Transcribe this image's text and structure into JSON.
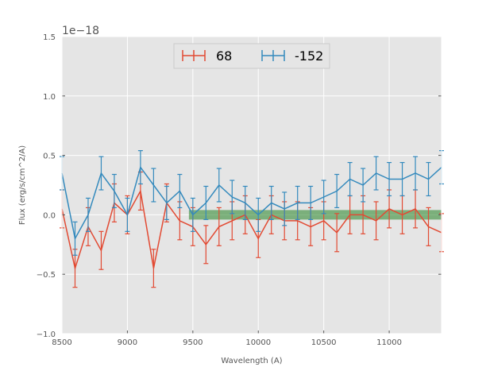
{
  "chart_data": {
    "type": "line",
    "title": "",
    "xlabel": "Wavelength (A)",
    "ylabel": "Flux (erg/s/cm^2/A)",
    "y_offset_text": "1e−18",
    "xlim": [
      8500,
      11400
    ],
    "ylim": [
      -1.0,
      1.5
    ],
    "y_scale": 1e-18,
    "xticks": [
      8500,
      9000,
      9500,
      10000,
      10500,
      11000
    ],
    "xtick_labels": [
      "8500",
      "9000",
      "9500",
      "10000",
      "10500",
      "11000"
    ],
    "yticks": [
      -1.0,
      -0.5,
      0.0,
      0.5,
      1.0,
      1.5
    ],
    "ytick_labels": [
      "−1.0",
      "−0.5",
      "0.0",
      "0.5",
      "1.0",
      "1.5"
    ],
    "grid": true,
    "legend_position": "top-center",
    "band": {
      "x": [
        9470,
        11400
      ],
      "y": [
        -0.04,
        0.04
      ],
      "color": "#348a34"
    },
    "series": [
      {
        "name": "68",
        "color": "#e24a33",
        "error": 0.16,
        "x": [
          8500,
          8600,
          8700,
          8800,
          8900,
          9000,
          9100,
          9200,
          9300,
          9400,
          9500,
          9600,
          9700,
          9800,
          9900,
          10000,
          10100,
          10200,
          10300,
          10400,
          10500,
          10600,
          10700,
          10800,
          10900,
          11000,
          11100,
          11200,
          11300,
          11400
        ],
        "y": [
          0.05,
          -0.45,
          -0.1,
          -0.3,
          0.1,
          0.0,
          0.2,
          -0.45,
          0.1,
          -0.05,
          -0.1,
          -0.25,
          -0.1,
          -0.05,
          0.0,
          -0.2,
          0.0,
          -0.05,
          -0.05,
          -0.1,
          -0.05,
          -0.15,
          0.0,
          0.0,
          -0.05,
          0.05,
          0.0,
          0.05,
          -0.1,
          -0.15
        ]
      },
      {
        "name": "-152",
        "color": "#348abd",
        "error": 0.14,
        "x": [
          8500,
          8600,
          8700,
          8800,
          8900,
          9000,
          9100,
          9200,
          9300,
          9400,
          9500,
          9600,
          9700,
          9800,
          9900,
          10000,
          10100,
          10200,
          10300,
          10400,
          10500,
          10600,
          10700,
          10800,
          10900,
          11000,
          11100,
          11200,
          11300,
          11400
        ],
        "y": [
          0.35,
          -0.2,
          0.0,
          0.35,
          0.2,
          0.0,
          0.4,
          0.25,
          0.1,
          0.2,
          0.0,
          0.1,
          0.25,
          0.15,
          0.1,
          0.0,
          0.1,
          0.05,
          0.1,
          0.1,
          0.15,
          0.2,
          0.3,
          0.25,
          0.35,
          0.3,
          0.3,
          0.35,
          0.3,
          0.4
        ]
      }
    ]
  }
}
